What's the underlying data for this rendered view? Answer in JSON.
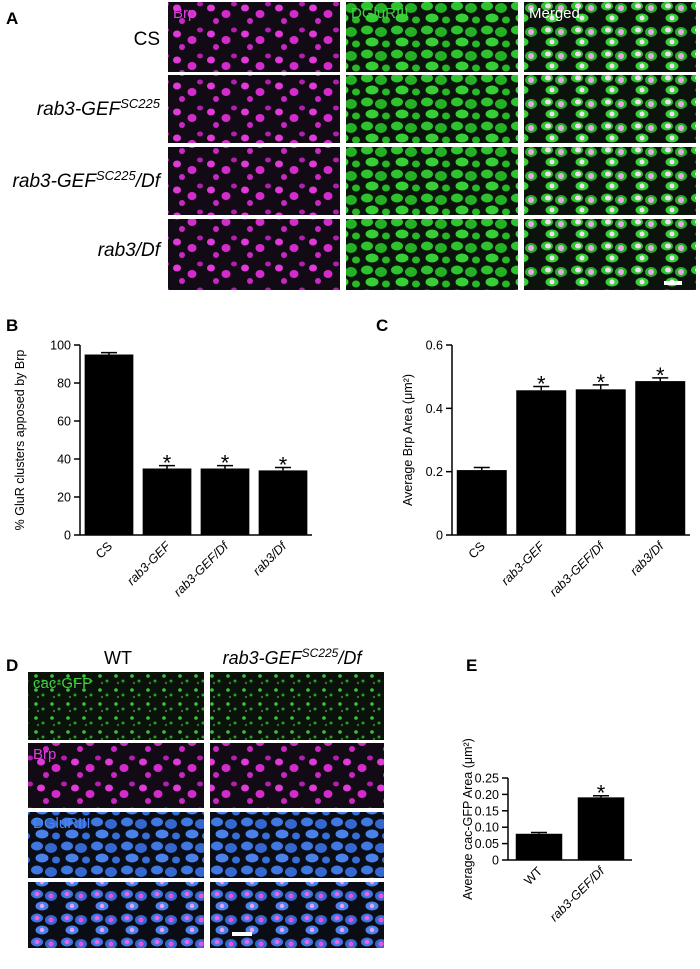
{
  "panels": {
    "A": {
      "letter": "A",
      "channels": [
        "Brp",
        "DGluRIII",
        "Merged"
      ],
      "genotypes": [
        {
          "text": "CS"
        },
        {
          "text": "rab3-GEF",
          "sup": "SC225"
        },
        {
          "text": "rab3-GEF",
          "sup": "SC225",
          "suffix": "/Df"
        },
        {
          "text": "rab3/Df"
        }
      ]
    },
    "B": {
      "letter": "B"
    },
    "C": {
      "letter": "C"
    },
    "D": {
      "letter": "D",
      "columns": [
        {
          "text": "WT"
        },
        {
          "text": "rab3-GEF",
          "sup": "SC225",
          "suffix": "/Df"
        }
      ],
      "channels": [
        "cac-GFP",
        "Brp",
        "DGluRIII"
      ]
    },
    "E": {
      "letter": "E"
    }
  },
  "chart_data": [
    {
      "type": "bar",
      "ylabel": "% GluR clusters apposed by Brp",
      "categories": [
        "CS",
        "rab3-GEF",
        "rab3-GEF/Df",
        "rab3/Df"
      ],
      "values": [
        95,
        35,
        35,
        34
      ],
      "errors": [
        1,
        1.5,
        1.5,
        1.5
      ],
      "significance": [
        null,
        "*",
        "*",
        "*"
      ],
      "color": "#000000",
      "ylim": [
        0,
        100
      ],
      "yticks": [
        0,
        20,
        40,
        60,
        80,
        100
      ]
    },
    {
      "type": "bar",
      "ylabel": "Average Brp Area (μm²)",
      "categories": [
        "CS",
        "rab3-GEF",
        "rab3-GEF/Df",
        "rab3/Df"
      ],
      "values": [
        0.205,
        0.457,
        0.46,
        0.486
      ],
      "errors": [
        0.008,
        0.012,
        0.014,
        0.01
      ],
      "significance": [
        null,
        "*",
        "*",
        "*"
      ],
      "color": "#000000",
      "ylim": [
        0,
        0.6
      ],
      "yticks": [
        0,
        0.2,
        0.4,
        0.6
      ]
    },
    {
      "type": "bar",
      "ylabel": "Average cac-GFP Area (μm²)",
      "categories": [
        "WT",
        "rab3-GEF/Df"
      ],
      "values": [
        0.08,
        0.191
      ],
      "errors": [
        0.004,
        0.005
      ],
      "significance": [
        null,
        "*"
      ],
      "color": "#000000",
      "ylim": [
        0,
        0.25
      ],
      "yticks": [
        0,
        0.05,
        {
          "value": 0.1,
          "label": "0.10"
        },
        0.15,
        {
          "value": 0.2,
          "label": "0.20"
        },
        0.25
      ]
    }
  ]
}
